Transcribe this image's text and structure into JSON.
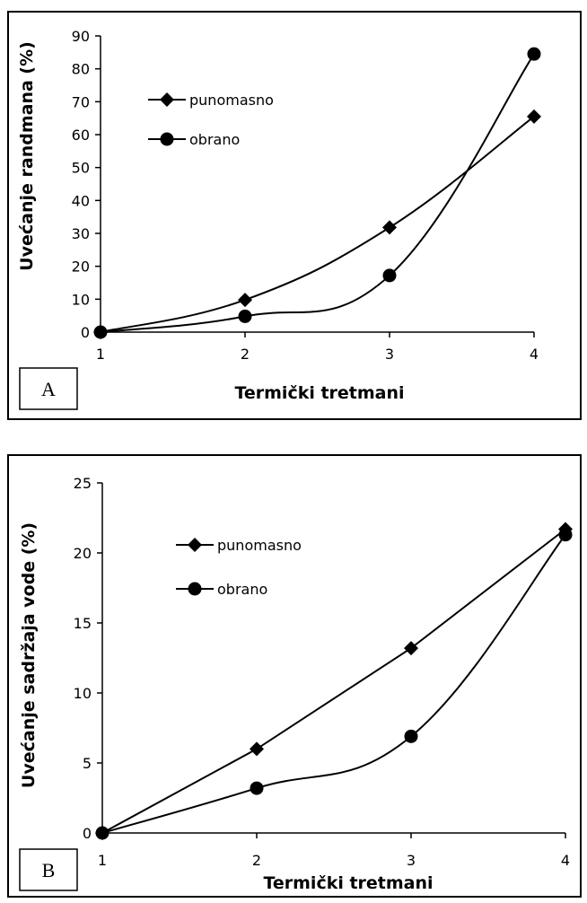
{
  "chart_data": [
    {
      "type": "line",
      "panel_label": "A",
      "xlabel": "Termički tretmani",
      "ylabel": "Uvećanje randmana (%)",
      "x": [
        1,
        2,
        3,
        4
      ],
      "ylim": [
        0,
        90
      ],
      "yticks": [
        0,
        10,
        20,
        30,
        40,
        50,
        60,
        70,
        80,
        90
      ],
      "xticks": [
        1,
        2,
        3,
        4
      ],
      "legend_position": "upper-left",
      "series": [
        {
          "name": "punomasno",
          "marker": "diamond",
          "values": [
            0,
            9.8,
            31.8,
            65.5
          ]
        },
        {
          "name": "obrano",
          "marker": "circle",
          "values": [
            0,
            4.8,
            17.2,
            84.5
          ]
        }
      ]
    },
    {
      "type": "line",
      "panel_label": "B",
      "xlabel": "Termički tretmani",
      "ylabel": "Uvećanje sadržaja vode (%)",
      "x": [
        1,
        2,
        3,
        4
      ],
      "ylim": [
        0,
        25
      ],
      "yticks": [
        0,
        5,
        10,
        15,
        20,
        25
      ],
      "xticks": [
        1,
        2,
        3,
        4
      ],
      "legend_position": "upper-left",
      "series": [
        {
          "name": "punomasno",
          "marker": "diamond",
          "values": [
            0,
            6.0,
            13.2,
            21.7
          ]
        },
        {
          "name": "obrano",
          "marker": "circle",
          "values": [
            0,
            3.2,
            6.9,
            21.3
          ]
        }
      ]
    }
  ]
}
